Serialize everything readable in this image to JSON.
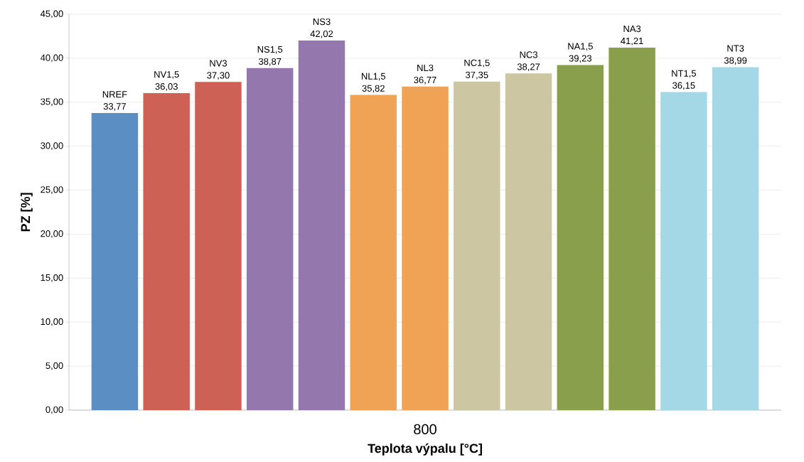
{
  "chart_data": {
    "type": "bar",
    "xlabel": "Teplota výpalu [°C]",
    "ylabel": "PZ [%]",
    "categories": [
      "800"
    ],
    "series": [
      {
        "name": "NREF",
        "color": "#5b8fc4",
        "values": [
          33.77
        ],
        "value_labels": [
          "33,77"
        ]
      },
      {
        "name": "NV1,5",
        "color": "#cd6155",
        "values": [
          36.03
        ],
        "value_labels": [
          "36,03"
        ]
      },
      {
        "name": "NV3",
        "color": "#cd6155",
        "values": [
          37.3
        ],
        "value_labels": [
          "37,30"
        ]
      },
      {
        "name": "NS1,5",
        "color": "#9478ad",
        "values": [
          38.87
        ],
        "value_labels": [
          "38,87"
        ]
      },
      {
        "name": "NS3",
        "color": "#9478ad",
        "values": [
          42.02
        ],
        "value_labels": [
          "42,02"
        ]
      },
      {
        "name": "NL1,5",
        "color": "#f0a355",
        "values": [
          35.82
        ],
        "value_labels": [
          "35,82"
        ]
      },
      {
        "name": "NL3",
        "color": "#f0a355",
        "values": [
          36.77
        ],
        "value_labels": [
          "36,77"
        ]
      },
      {
        "name": "NC1,5",
        "color": "#cdc6a3",
        "values": [
          37.35
        ],
        "value_labels": [
          "37,35"
        ]
      },
      {
        "name": "NC3",
        "color": "#cdc6a3",
        "values": [
          38.27
        ],
        "value_labels": [
          "38,27"
        ]
      },
      {
        "name": "NA1,5",
        "color": "#8a9f4c",
        "values": [
          39.23
        ],
        "value_labels": [
          "39,23"
        ]
      },
      {
        "name": "NA3",
        "color": "#8a9f4c",
        "values": [
          41.21
        ],
        "value_labels": [
          "41,21"
        ]
      },
      {
        "name": "NT1,5",
        "color": "#a5d8e6",
        "values": [
          36.15
        ],
        "value_labels": [
          "36,15"
        ]
      },
      {
        "name": "NT3",
        "color": "#a5d8e6",
        "values": [
          38.99
        ],
        "value_labels": [
          "38,99"
        ]
      }
    ],
    "ylim": [
      0,
      45
    ],
    "yticks": [
      {
        "value": 0,
        "label": "0,00"
      },
      {
        "value": 5,
        "label": "5,00"
      },
      {
        "value": 10,
        "label": "10,00"
      },
      {
        "value": 15,
        "label": "15,00"
      },
      {
        "value": 20,
        "label": "20,00"
      },
      {
        "value": 25,
        "label": "25,00"
      },
      {
        "value": 30,
        "label": "30,00"
      },
      {
        "value": 35,
        "label": "35,00"
      },
      {
        "value": 40,
        "label": "40,00"
      },
      {
        "value": 45,
        "label": "45,00"
      }
    ],
    "grid": "y"
  }
}
